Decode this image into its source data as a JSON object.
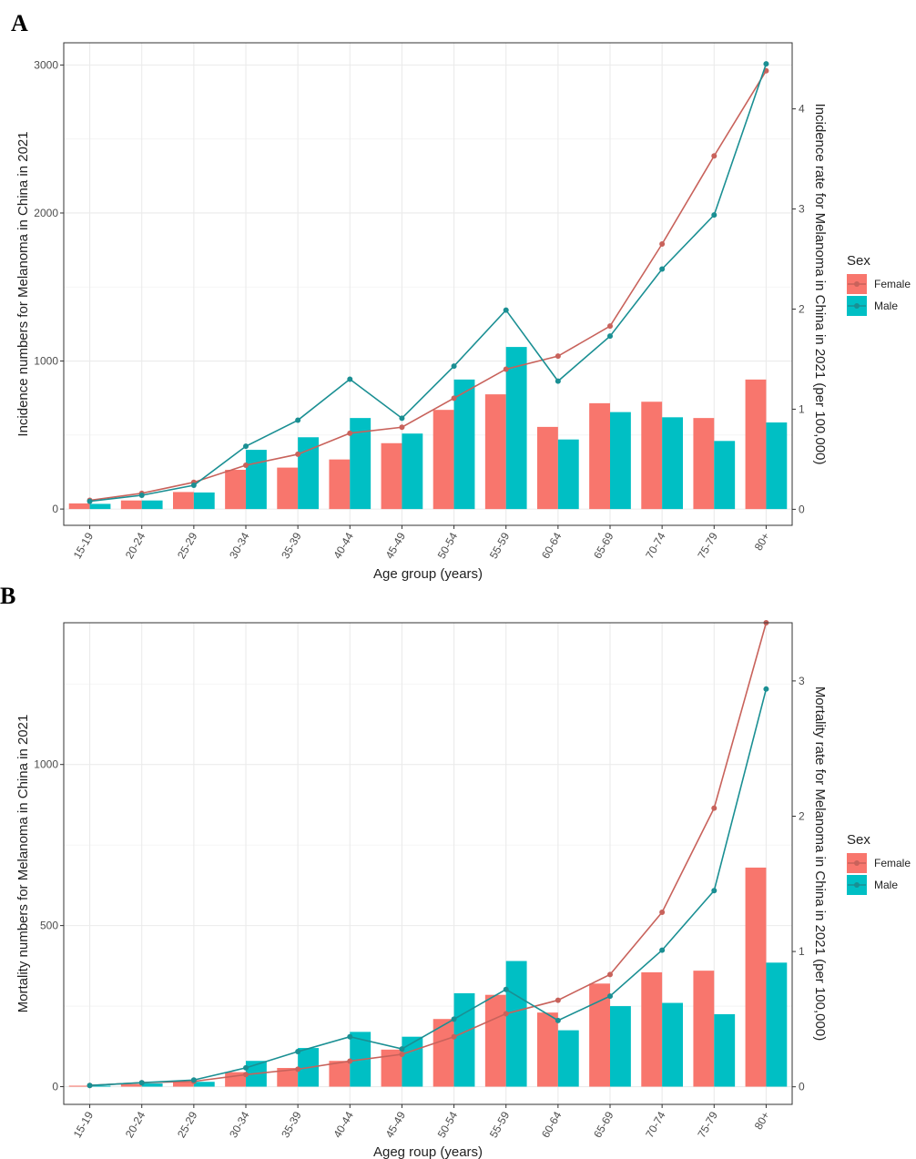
{
  "colors": {
    "female": "#f8766d",
    "male": "#00bfc4",
    "female_line": "#c8625b",
    "male_line": "#1a8f93"
  },
  "chart_data": [
    {
      "panel": "A",
      "type": "bar",
      "title": "",
      "categories": [
        "15-19",
        "20-24",
        "25-29",
        "30-34",
        "35-39",
        "40-44",
        "45-49",
        "50-54",
        "55-59",
        "60-64",
        "65-69",
        "70-74",
        "75-79",
        "80+"
      ],
      "xlabel": "Age group (years)",
      "ylabel": "Incidence numbers for Melanoma in China in 2021",
      "y2label": "Incidence rate for Melanoma in China in 2021 (per 100,000)",
      "ylim": [
        -110,
        3150
      ],
      "y_ticks": [
        0,
        1000,
        2000,
        3000
      ],
      "y2lim": [
        -0.16,
        4.66
      ],
      "y2_ticks": [
        0,
        1,
        2,
        3,
        4
      ],
      "legend": {
        "title": "Sex",
        "position": "right",
        "entries": [
          "Female",
          "Male"
        ]
      },
      "series": [
        {
          "name": "Female",
          "type": "bar",
          "values": [
            38,
            58,
            115,
            265,
            280,
            335,
            445,
            670,
            775,
            555,
            715,
            725,
            615,
            875
          ]
        },
        {
          "name": "Male",
          "type": "bar",
          "values": [
            35,
            58,
            112,
            400,
            485,
            615,
            510,
            875,
            1095,
            470,
            655,
            620,
            460,
            585
          ]
        },
        {
          "name": "Female",
          "type": "line",
          "axis": "right",
          "values": [
            0.09,
            0.16,
            0.27,
            0.44,
            0.55,
            0.76,
            0.82,
            1.11,
            1.4,
            1.53,
            1.83,
            2.65,
            3.53,
            4.38
          ]
        },
        {
          "name": "Male",
          "type": "line",
          "axis": "right",
          "values": [
            0.08,
            0.14,
            0.24,
            0.63,
            0.89,
            1.3,
            0.91,
            1.43,
            1.99,
            1.28,
            1.73,
            2.4,
            2.94,
            4.45
          ]
        }
      ]
    },
    {
      "panel": "B",
      "type": "bar",
      "title": "",
      "categories": [
        "15-19",
        "20-24",
        "25-29",
        "30-34",
        "35-39",
        "40-44",
        "45-49",
        "50-54",
        "55-59",
        "60-64",
        "65-69",
        "70-74",
        "75-79",
        "80+"
      ],
      "xlabel": "Ageg roup (years)",
      "ylabel": "Mortality numbers for Melanoma in China in 2021",
      "y2label": "Mortality rate for Melanoma in China in 2021 (per 100,000)",
      "ylim": [
        -55,
        1440
      ],
      "y_ticks": [
        0,
        500,
        1000
      ],
      "y2lim": [
        -0.13,
        3.43
      ],
      "y2_ticks": [
        0,
        1,
        2,
        3
      ],
      "legend": {
        "title": "Sex",
        "position": "right",
        "entries": [
          "Female",
          "Male"
        ]
      },
      "series": [
        {
          "name": "Female",
          "type": "bar",
          "values": [
            3,
            8,
            15,
            45,
            58,
            80,
            115,
            210,
            285,
            230,
            320,
            355,
            360,
            680
          ]
        },
        {
          "name": "Male",
          "type": "bar",
          "values": [
            3,
            10,
            15,
            80,
            120,
            170,
            155,
            290,
            390,
            175,
            250,
            260,
            225,
            385
          ]
        },
        {
          "name": "Female",
          "type": "line",
          "axis": "right",
          "values": [
            0.01,
            0.03,
            0.04,
            0.09,
            0.13,
            0.19,
            0.24,
            0.37,
            0.54,
            0.64,
            0.83,
            1.29,
            2.06,
            3.43
          ]
        },
        {
          "name": "Male",
          "type": "line",
          "axis": "right",
          "values": [
            0.01,
            0.03,
            0.05,
            0.14,
            0.26,
            0.37,
            0.28,
            0.5,
            0.72,
            0.49,
            0.67,
            1.01,
            1.45,
            2.94
          ]
        }
      ]
    }
  ]
}
